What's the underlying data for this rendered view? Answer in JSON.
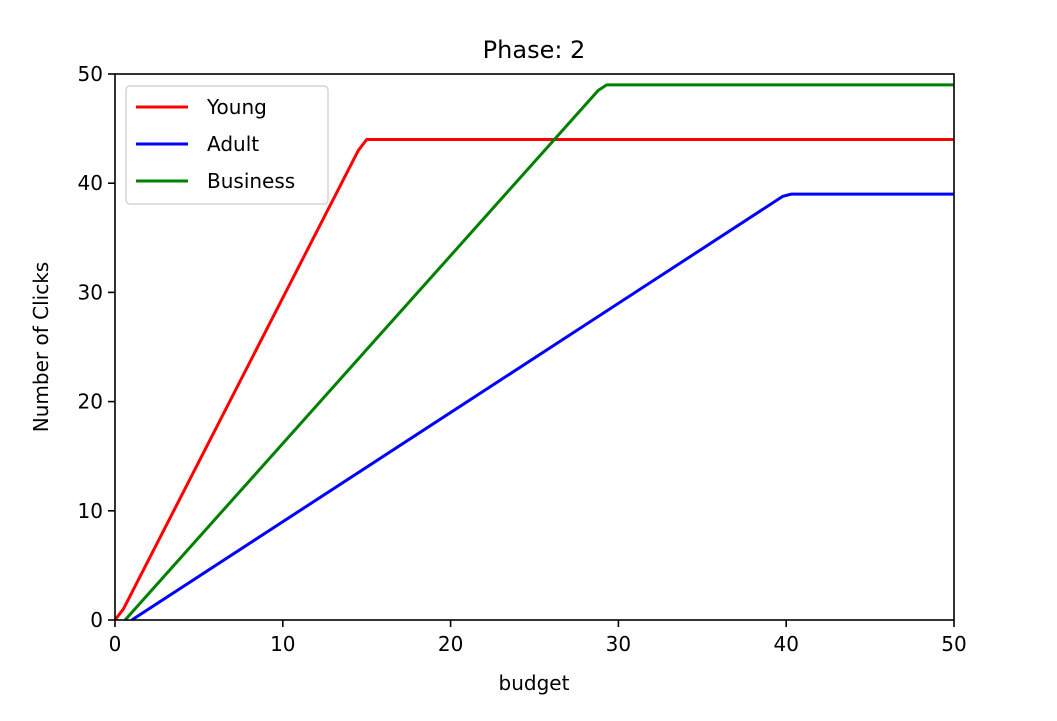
{
  "chart_data": {
    "type": "line",
    "title": "Phase: 2",
    "xlabel": "budget",
    "ylabel": "Number of Clicks",
    "xlim": [
      0,
      50
    ],
    "ylim": [
      0,
      50
    ],
    "xticks": [
      0,
      10,
      20,
      30,
      40,
      50
    ],
    "yticks": [
      0,
      10,
      20,
      30,
      40,
      50
    ],
    "grid": false,
    "legend_position": "top-left",
    "series": [
      {
        "name": "Young",
        "color": "#ff0000",
        "x": [
          0,
          0.5,
          14.5,
          15.0,
          50
        ],
        "y": [
          0,
          1,
          43,
          44,
          44
        ]
      },
      {
        "name": "Adult",
        "color": "#0000ff",
        "x": [
          1.0,
          39.8,
          40.3,
          50
        ],
        "y": [
          0,
          38.8,
          39,
          39
        ]
      },
      {
        "name": "Business",
        "color": "#008000",
        "x": [
          0.6,
          28.8,
          29.3,
          50
        ],
        "y": [
          0,
          48.5,
          49,
          49
        ]
      }
    ]
  }
}
